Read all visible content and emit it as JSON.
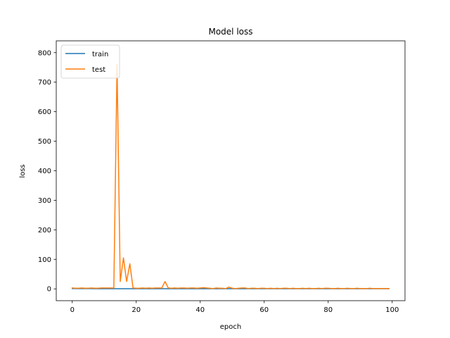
{
  "chart_data": {
    "type": "line",
    "title": "Model loss",
    "xlabel": "epoch",
    "ylabel": "loss",
    "xlim": [
      -5,
      104
    ],
    "ylim": [
      -40,
      840
    ],
    "xticks": [
      0,
      20,
      40,
      60,
      80,
      100
    ],
    "yticks": [
      0,
      100,
      200,
      300,
      400,
      500,
      600,
      700,
      800
    ],
    "grid": false,
    "legend": "upper left",
    "series": [
      {
        "name": "train",
        "color": "#1f77b4",
        "x": [
          0,
          1,
          2,
          3,
          4,
          5,
          6,
          7,
          8,
          9,
          10,
          11,
          12,
          13,
          14,
          15,
          16,
          17,
          18,
          19,
          20,
          21,
          22,
          23,
          24,
          25,
          26,
          27,
          28,
          29,
          30,
          31,
          32,
          33,
          34,
          35,
          36,
          37,
          38,
          39,
          40,
          41,
          42,
          43,
          44,
          45,
          46,
          47,
          48,
          49,
          50,
          51,
          52,
          53,
          54,
          55,
          56,
          57,
          58,
          59,
          60,
          61,
          62,
          63,
          64,
          65,
          66,
          67,
          68,
          69,
          70,
          71,
          72,
          73,
          74,
          75,
          76,
          77,
          78,
          79,
          80,
          81,
          82,
          83,
          84,
          85,
          86,
          87,
          88,
          89,
          90,
          91,
          92,
          93,
          94,
          95,
          96,
          97,
          98,
          99
        ],
        "y": [
          1.0,
          0.9,
          0.8,
          0.8,
          0.7,
          0.7,
          0.7,
          0.6,
          0.6,
          0.6,
          0.6,
          0.6,
          0.5,
          0.5,
          0.5,
          0.5,
          0.5,
          0.5,
          0.5,
          0.5,
          0.5,
          0.5,
          0.5,
          0.5,
          0.5,
          0.5,
          0.5,
          0.5,
          0.5,
          0.5,
          0.5,
          0.5,
          0.5,
          0.5,
          0.5,
          0.5,
          0.5,
          0.5,
          0.5,
          0.5,
          0.5,
          0.5,
          0.5,
          0.5,
          0.5,
          0.5,
          0.5,
          0.5,
          0.5,
          0.5,
          0.5,
          0.5,
          0.5,
          0.5,
          0.5,
          0.5,
          0.5,
          0.5,
          0.5,
          0.5,
          0.5,
          0.5,
          0.5,
          0.5,
          0.5,
          0.5,
          0.5,
          0.5,
          0.5,
          0.5,
          0.5,
          0.5,
          0.5,
          0.5,
          0.5,
          0.5,
          0.5,
          0.5,
          0.5,
          0.5,
          0.5,
          0.5,
          0.5,
          0.5,
          0.5,
          0.5,
          0.5,
          0.5,
          0.5,
          0.5,
          0.5,
          0.5,
          0.5,
          0.5,
          0.5,
          0.5,
          0.5,
          0.5,
          0.5,
          0.5
        ]
      },
      {
        "name": "test",
        "color": "#ff7f0e",
        "x": [
          0,
          1,
          2,
          3,
          4,
          5,
          6,
          7,
          8,
          9,
          10,
          11,
          12,
          13,
          14,
          15,
          16,
          17,
          18,
          19,
          20,
          21,
          22,
          23,
          24,
          25,
          26,
          27,
          28,
          29,
          30,
          31,
          32,
          33,
          34,
          35,
          36,
          37,
          38,
          39,
          40,
          41,
          42,
          43,
          44,
          45,
          46,
          47,
          48,
          49,
          50,
          51,
          52,
          53,
          54,
          55,
          56,
          57,
          58,
          59,
          60,
          61,
          62,
          63,
          64,
          65,
          66,
          67,
          68,
          69,
          70,
          71,
          72,
          73,
          74,
          75,
          76,
          77,
          78,
          79,
          80,
          81,
          82,
          83,
          84,
          85,
          86,
          87,
          88,
          89,
          90,
          91,
          92,
          93,
          94,
          95,
          96,
          97,
          98,
          99
        ],
        "y": [
          3,
          2,
          2,
          3,
          2,
          2,
          3,
          2,
          2,
          3,
          3,
          3,
          3,
          3,
          760,
          25,
          105,
          25,
          85,
          3,
          2,
          2,
          3,
          2,
          3,
          2,
          3,
          3,
          3,
          25,
          3,
          2,
          3,
          2,
          3,
          3,
          2,
          3,
          3,
          2,
          3,
          4,
          3,
          2,
          1,
          3,
          2,
          2,
          1,
          6,
          2,
          1,
          2,
          3,
          3,
          1,
          2,
          2,
          1,
          2,
          2,
          1,
          2,
          1,
          2,
          1,
          2,
          2,
          1,
          2,
          1,
          1,
          2,
          1,
          2,
          1,
          1,
          2,
          1,
          2,
          2,
          1,
          1,
          2,
          1,
          1,
          2,
          1,
          1,
          2,
          1,
          1,
          1,
          2,
          1,
          1,
          1,
          1,
          1,
          1
        ]
      }
    ]
  }
}
